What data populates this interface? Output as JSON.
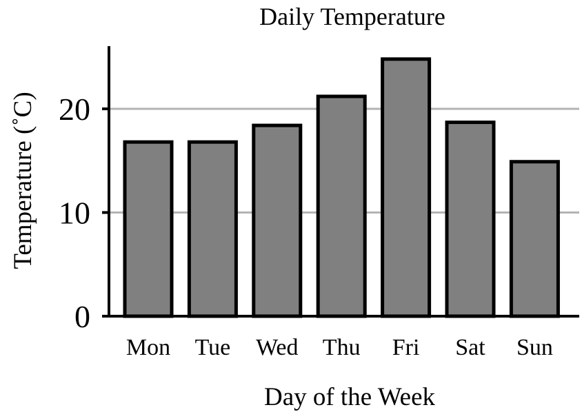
{
  "chart_data": {
    "type": "bar",
    "title": "Daily Temperature",
    "xlabel": "Day of the Week",
    "ylabel": "Temperature (˚C)",
    "categories": [
      "Mon",
      "Tue",
      "Wed",
      "Thu",
      "Fri",
      "Sat",
      "Sun"
    ],
    "values": [
      16.8,
      16.8,
      18.4,
      21.2,
      24.8,
      18.7,
      14.9
    ],
    "ylim": [
      0,
      26
    ],
    "yticks": [
      0,
      10,
      20
    ],
    "ytick_labels": [
      "0",
      "10",
      "20"
    ],
    "grid": true,
    "grid_axis": "y",
    "legend": false,
    "colors": {
      "bar_fill": "#808080",
      "bar_edge": "#000000",
      "grid": "#b3b3b3",
      "axis": "#000000"
    }
  }
}
